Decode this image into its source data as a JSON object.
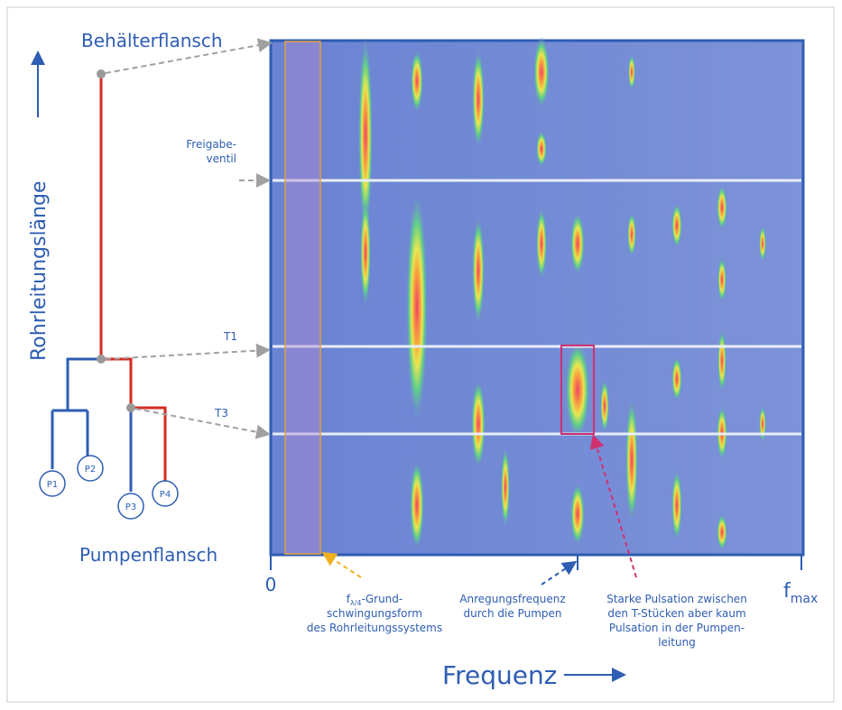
{
  "labels": {
    "top": "Behälterflansch",
    "y_axis": "Rohrleitungslänge",
    "bottom": "Pumpenflansch",
    "valve": [
      "Freigabe-",
      "ventil"
    ],
    "t1": "T1",
    "t3": "T3",
    "pumps": [
      "P1",
      "P2",
      "P3",
      "P4"
    ],
    "x_zero": "0",
    "x_max": {
      "base": "f",
      "sub": "max"
    },
    "x_axis": "Frequenz"
  },
  "annotations": {
    "fundamental": {
      "base": "f",
      "sub": "λ/4",
      "first": "-Grund-",
      "lines": [
        "schwingungsform",
        "des Rohrleitungssystems"
      ]
    },
    "excitation": [
      "Anregungsfrequenz",
      "durch die Pumpen"
    ],
    "pulsation": [
      "Starke Pulsation zwischen",
      "den T-Stücken aber kaum",
      "Pulsation in der Pumpen-",
      "leitung"
    ]
  }
}
